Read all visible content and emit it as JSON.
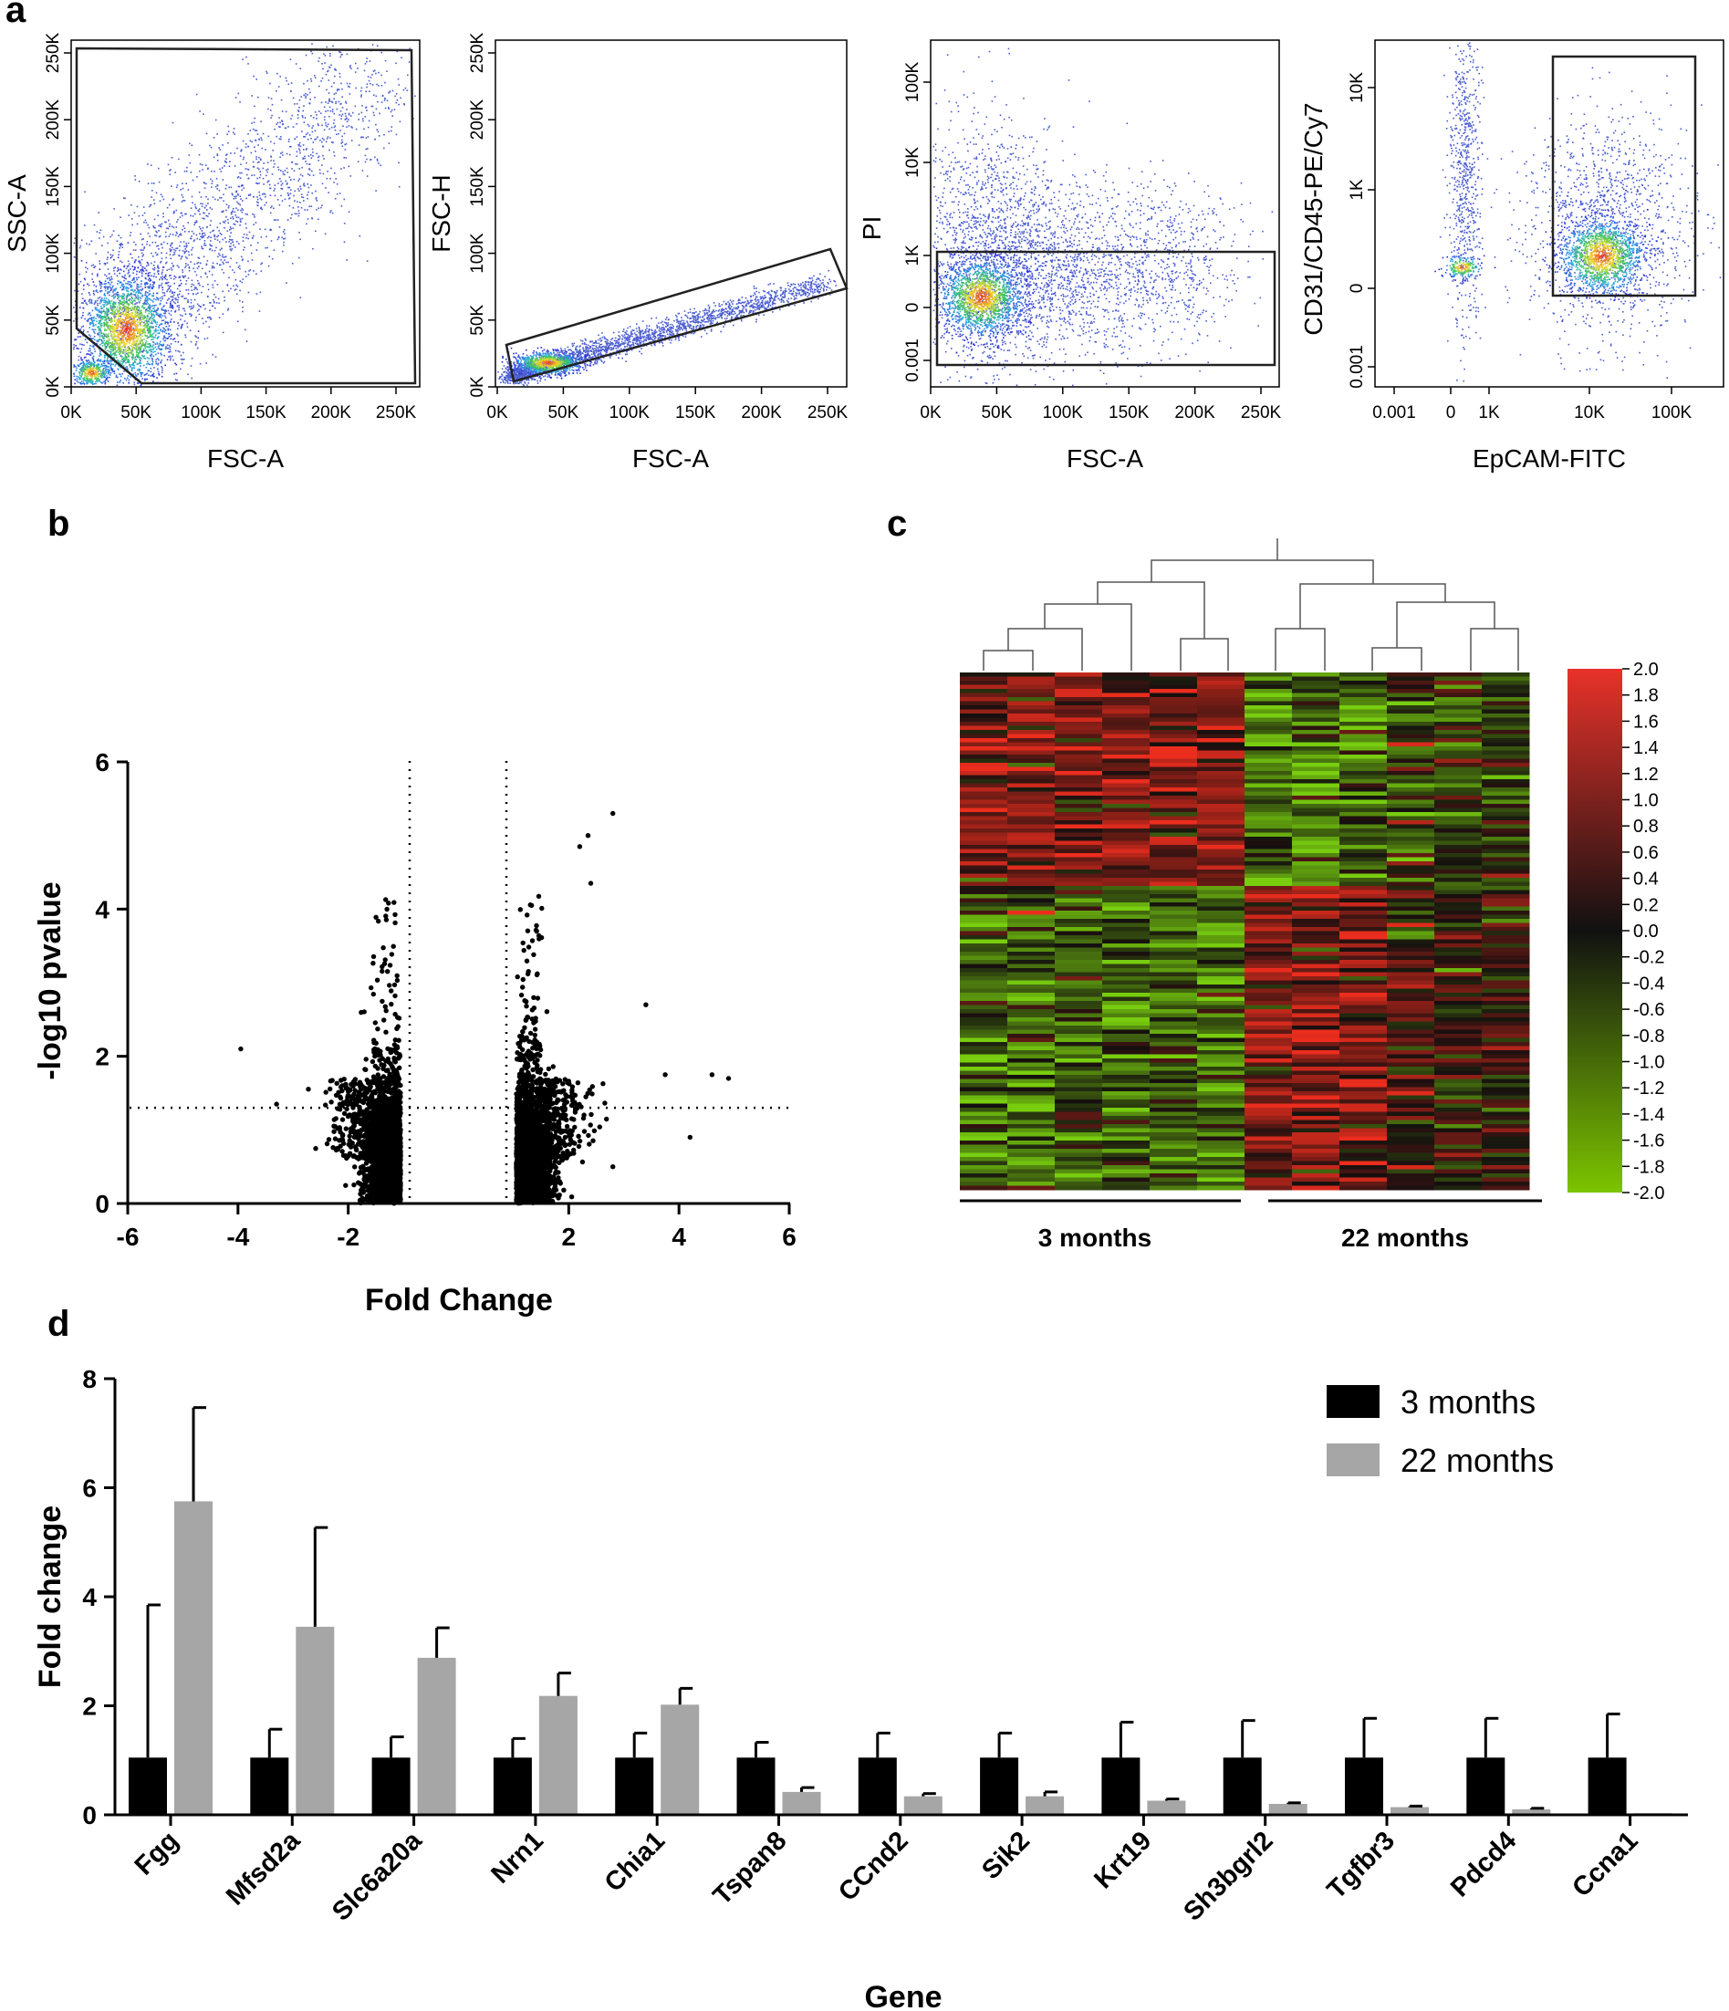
{
  "chart_data": [
    {
      "panel": "a",
      "type": "scatter",
      "subplots": [
        {
          "xlabel": "FSC-A",
          "ylabel": "SSC-A",
          "xticks": [
            "0K",
            "50K",
            "100K",
            "150K",
            "200K",
            "250K"
          ],
          "yticks": [
            "0K",
            "50K",
            "100K",
            "150K",
            "200K",
            "250K"
          ],
          "xlim": [
            0,
            262000
          ],
          "ylim": [
            0,
            262000
          ],
          "gate": "polygon"
        },
        {
          "xlabel": "FSC-A",
          "ylabel": "FSC-H",
          "xticks": [
            "0K",
            "50K",
            "100K",
            "150K",
            "200K",
            "250K"
          ],
          "yticks": [
            "0K",
            "50K",
            "100K",
            "150K",
            "200K",
            "250K"
          ],
          "xlim": [
            0,
            262000
          ],
          "ylim": [
            0,
            262000
          ],
          "gate": "rotated rectangle"
        },
        {
          "xlabel": "FSC-A",
          "ylabel": "PI",
          "xticks": [
            "0K",
            "50K",
            "100K",
            "150K",
            "200K",
            "250K"
          ],
          "yticks": [
            "0.001",
            "0",
            "1K",
            "10K",
            "100K"
          ],
          "xlim": [
            0,
            262000
          ],
          "gate": "rectangle"
        },
        {
          "xlabel": "EpCAM-FITC",
          "ylabel": "CD31/CD45-PE/Cy7",
          "xticks": [
            "0.001",
            "0",
            "1K",
            "10K",
            "100K"
          ],
          "yticks": [
            "0.001",
            "0",
            "1K",
            "10K"
          ],
          "gate": "rectangle"
        }
      ]
    },
    {
      "panel": "b",
      "type": "scatter",
      "title": "",
      "xlabel": "Fold Change",
      "ylabel": "-log10 pvalue",
      "xlim": [
        -6,
        6
      ],
      "ylim": [
        0,
        6
      ],
      "xticks": [
        "-6",
        "-4",
        "-2",
        "2",
        "4",
        "6"
      ],
      "yticks": [
        "0",
        "2",
        "4",
        "6"
      ],
      "threshold_line_y": 1.3,
      "outliers": [
        {
          "x": -3.95,
          "y": 2.1
        },
        {
          "x": -3.3,
          "y": 1.35
        },
        {
          "x": 2.8,
          "y": 5.3
        },
        {
          "x": 2.35,
          "y": 5.0
        },
        {
          "x": 2.2,
          "y": 4.85
        },
        {
          "x": 2.4,
          "y": 4.35
        },
        {
          "x": 3.4,
          "y": 2.7
        },
        {
          "x": 3.75,
          "y": 1.75
        },
        {
          "x": 4.6,
          "y": 1.75
        },
        {
          "x": 4.9,
          "y": 1.7
        },
        {
          "x": 4.2,
          "y": 0.9
        },
        {
          "x": 2.8,
          "y": 0.5
        }
      ]
    },
    {
      "panel": "c",
      "type": "heatmap",
      "groups": [
        "3 months",
        "22 months"
      ],
      "columns_per_group": 6,
      "colorbar_ticks": [
        "2.0",
        "1.8",
        "1.6",
        "1.4",
        "1.2",
        "1.0",
        "0.8",
        "0.6",
        "0.4",
        "0.2",
        "0.0",
        "-0.2",
        "-0.4",
        "-0.6",
        "-0.8",
        "-1.0",
        "-1.2",
        "-1.4",
        "-1.6",
        "-1.8",
        "-2.0"
      ],
      "color_range": [
        -2.0,
        2.0
      ],
      "colors": {
        "high": "#e8322a",
        "mid": "#111111",
        "low": "#7cc400"
      }
    },
    {
      "panel": "d",
      "type": "bar",
      "xlabel": "Gene",
      "ylabel": "Fold change",
      "ylim": [
        0,
        8
      ],
      "yticks": [
        "0",
        "2",
        "4",
        "6",
        "8"
      ],
      "categories": [
        "Fgg",
        "Mfsd2a",
        "Slc6a20a",
        "Nrn1",
        "Chia1",
        "Tspan8",
        "CCnd2",
        "Sik2",
        "Krt19",
        "Sh3bgrl2",
        "Tgfbr3",
        "Pdcd4",
        "Ccna1"
      ],
      "series": [
        {
          "name": "3 months",
          "color": "#000000",
          "values": [
            1.05,
            1.05,
            1.05,
            1.05,
            1.05,
            1.05,
            1.05,
            1.05,
            1.05,
            1.05,
            1.05,
            1.05,
            1.05
          ],
          "errors": [
            2.8,
            0.52,
            0.38,
            0.35,
            0.45,
            0.28,
            0.45,
            0.45,
            0.65,
            0.68,
            0.72,
            0.72,
            0.8
          ]
        },
        {
          "name": "22 months",
          "color": "#a6a6a7",
          "values": [
            5.75,
            3.45,
            2.88,
            2.18,
            2.02,
            0.42,
            0.34,
            0.34,
            0.26,
            0.2,
            0.14,
            0.1,
            0.03
          ],
          "errors": [
            1.72,
            1.82,
            0.55,
            0.42,
            0.3,
            0.08,
            0.05,
            0.08,
            0.03,
            0.02,
            0.02,
            0.02,
            0.0
          ]
        }
      ]
    }
  ]
}
